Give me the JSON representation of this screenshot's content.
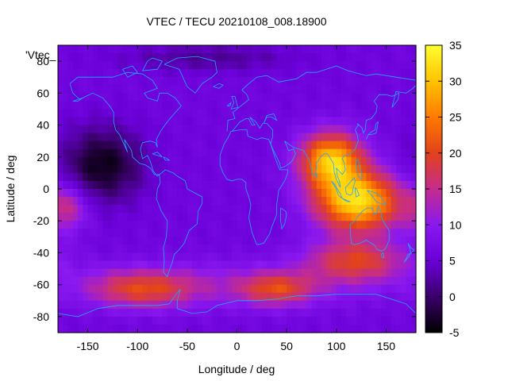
{
  "chart_data": {
    "type": "heatmap",
    "title": "VTEC / TECU 20210108_008.18900",
    "xlabel": "Longitude / deg",
    "ylabel": "Latitude / deg",
    "key_label": "'Vtec_",
    "xlim": [
      -180,
      180
    ],
    "ylim": [
      -90,
      90
    ],
    "x_ticks": [
      -150,
      -100,
      -50,
      0,
      50,
      100,
      150
    ],
    "y_ticks": [
      -80,
      -60,
      -40,
      -20,
      0,
      20,
      40,
      60,
      80
    ],
    "colorbar": {
      "range": [
        -5,
        35
      ],
      "ticks": [
        -5,
        0,
        5,
        10,
        15,
        20,
        25,
        30,
        35
      ],
      "palette": [
        "#000000",
        "#3a006a",
        "#6a00d8",
        "#8a18f0",
        "#c42c8c",
        "#e2421c",
        "#ff7a00",
        "#ffc200",
        "#ffff30"
      ]
    },
    "grid_step_deg": 5,
    "background_vtec": 6,
    "features": [
      {
        "name": "asia-pacific maximum",
        "lon": 95,
        "lat": 18,
        "peak": 24,
        "sig_lon": 22,
        "sig_lat": 12
      },
      {
        "name": "indonesia / australia maximum",
        "lon": 122,
        "lat": -8,
        "peak": 26,
        "sig_lon": 30,
        "sig_lat": 13
      },
      {
        "name": "south indian ocean band",
        "lon": 120,
        "lat": -45,
        "peak": 13,
        "sig_lon": 35,
        "sig_lat": 9
      },
      {
        "name": "south atlantic",
        "lon": 40,
        "lat": -63,
        "peak": 11,
        "sig_lon": 25,
        "sig_lat": 7
      },
      {
        "name": "south pacific",
        "lon": -95,
        "lat": -63,
        "peak": 11,
        "sig_lon": 35,
        "sig_lat": 8
      },
      {
        "name": "antarctic ring",
        "lon": -20,
        "lat": -60,
        "peak": 5,
        "sig_lon": 120,
        "sig_lat": 10
      },
      {
        "name": "east pacific equator",
        "lon": -170,
        "lat": -12,
        "peak": 8,
        "sig_lon": 15,
        "sig_lat": 10
      },
      {
        "name": "north pacific trough",
        "lon": -135,
        "lat": 15,
        "peak": -10,
        "sig_lon": 28,
        "sig_lat": 16
      },
      {
        "name": "arctic low",
        "lon": -30,
        "lat": 82,
        "peak": -4,
        "sig_lon": 60,
        "sig_lat": 6
      }
    ]
  }
}
